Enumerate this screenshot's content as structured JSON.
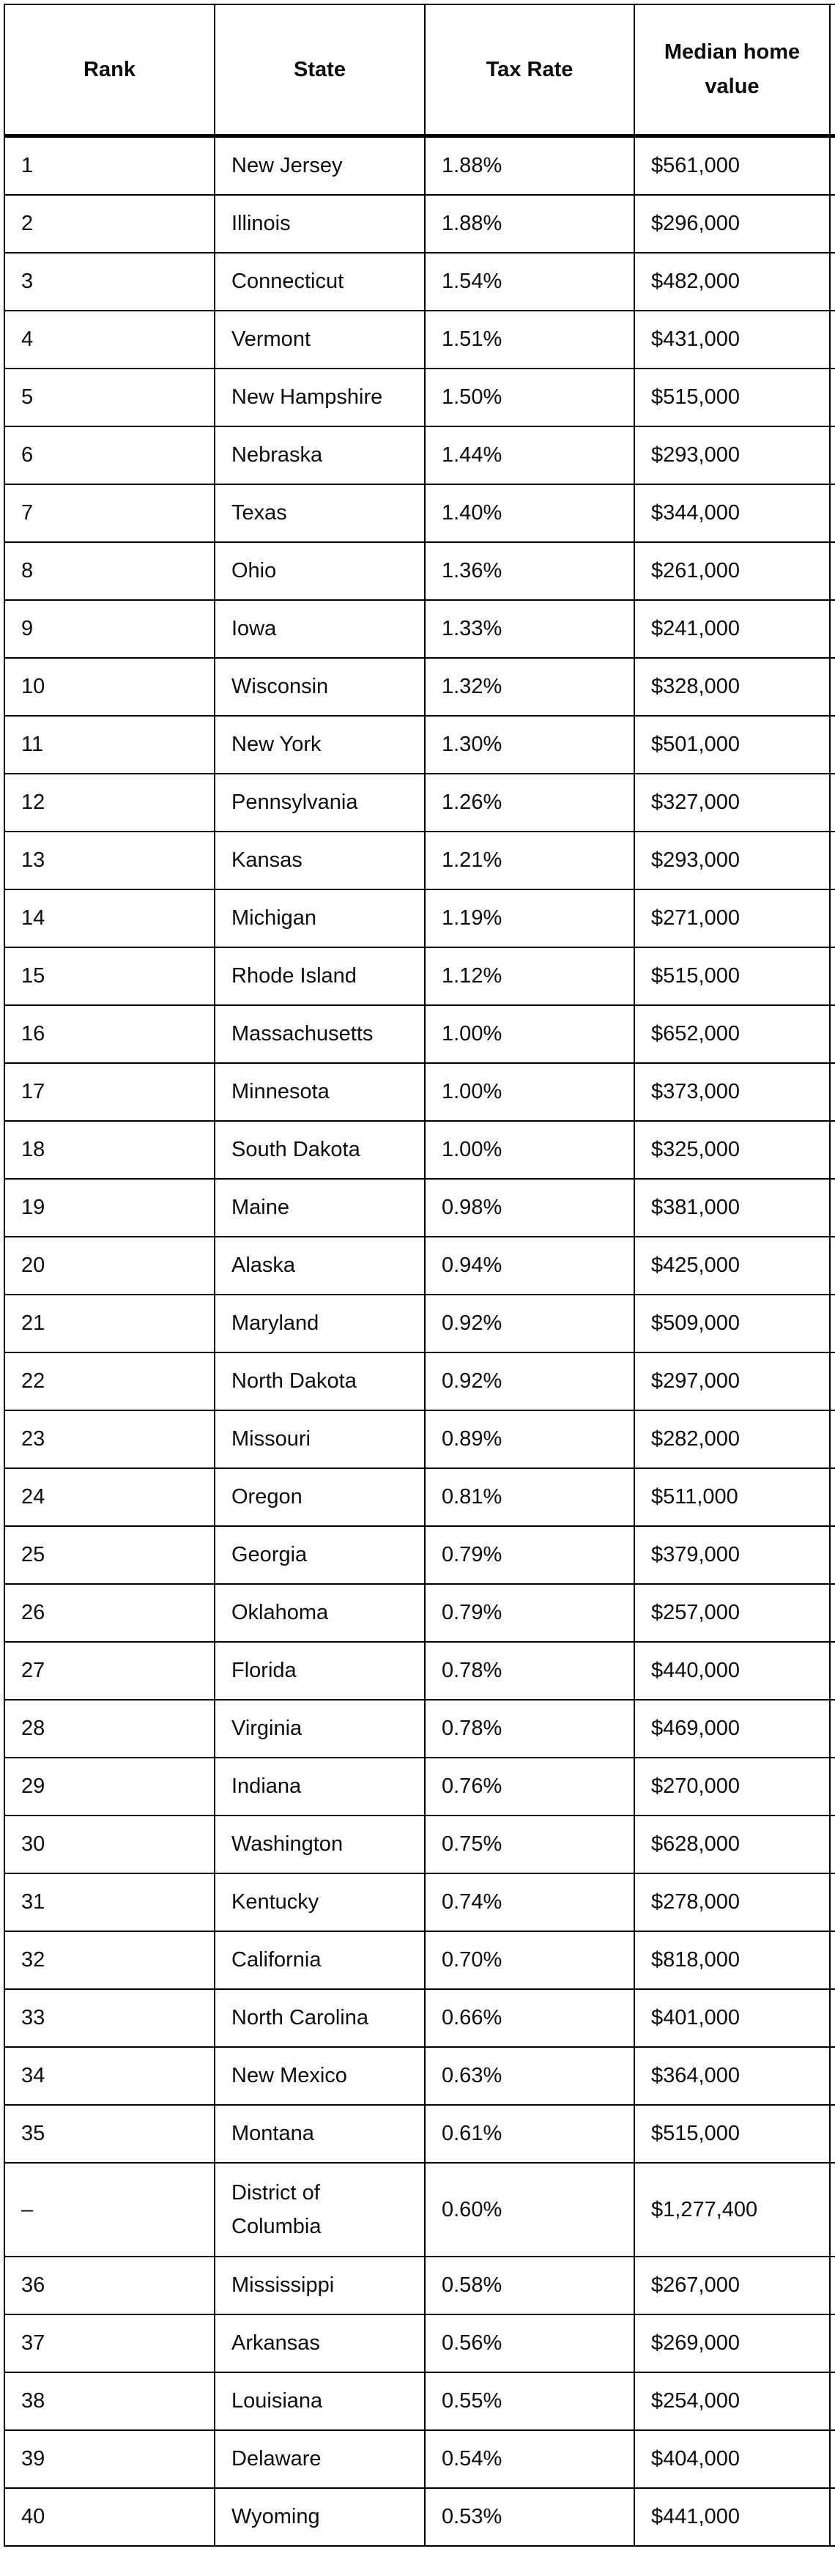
{
  "table": {
    "columns": [
      {
        "label": "Rank"
      },
      {
        "label": "State"
      },
      {
        "label": "Tax Rate"
      },
      {
        "label": "Median home value"
      }
    ],
    "rows": [
      {
        "rank": "1",
        "state": "New Jersey",
        "tax_rate": "1.88%",
        "median_home_value": "$561,000"
      },
      {
        "rank": "2",
        "state": "Illinois",
        "tax_rate": "1.88%",
        "median_home_value": "$296,000"
      },
      {
        "rank": "3",
        "state": "Connecticut",
        "tax_rate": "1.54%",
        "median_home_value": "$482,000"
      },
      {
        "rank": "4",
        "state": "Vermont",
        "tax_rate": "1.51%",
        "median_home_value": "$431,000"
      },
      {
        "rank": "5",
        "state": "New Hampshire",
        "tax_rate": "1.50%",
        "median_home_value": "$515,000"
      },
      {
        "rank": "6",
        "state": "Nebraska",
        "tax_rate": "1.44%",
        "median_home_value": "$293,000"
      },
      {
        "rank": "7",
        "state": "Texas",
        "tax_rate": "1.40%",
        "median_home_value": "$344,000"
      },
      {
        "rank": "8",
        "state": "Ohio",
        "tax_rate": "1.36%",
        "median_home_value": "$261,000"
      },
      {
        "rank": "9",
        "state": "Iowa",
        "tax_rate": "1.33%",
        "median_home_value": "$241,000"
      },
      {
        "rank": "10",
        "state": "Wisconsin",
        "tax_rate": "1.32%",
        "median_home_value": "$328,000"
      },
      {
        "rank": "11",
        "state": "New York",
        "tax_rate": "1.30%",
        "median_home_value": "$501,000"
      },
      {
        "rank": "12",
        "state": "Pennsylvania",
        "tax_rate": "1.26%",
        "median_home_value": "$327,000"
      },
      {
        "rank": "13",
        "state": "Kansas",
        "tax_rate": "1.21%",
        "median_home_value": "$293,000"
      },
      {
        "rank": "14",
        "state": "Michigan",
        "tax_rate": "1.19%",
        "median_home_value": "$271,000"
      },
      {
        "rank": "15",
        "state": "Rhode Island",
        "tax_rate": "1.12%",
        "median_home_value": "$515,000"
      },
      {
        "rank": "16",
        "state": "Massachusetts",
        "tax_rate": "1.00%",
        "median_home_value": "$652,000"
      },
      {
        "rank": "17",
        "state": "Minnesota",
        "tax_rate": "1.00%",
        "median_home_value": "$373,000"
      },
      {
        "rank": "18",
        "state": "South Dakota",
        "tax_rate": "1.00%",
        "median_home_value": "$325,000"
      },
      {
        "rank": "19",
        "state": "Maine",
        "tax_rate": "0.98%",
        "median_home_value": "$381,000"
      },
      {
        "rank": "20",
        "state": "Alaska",
        "tax_rate": "0.94%",
        "median_home_value": "$425,000"
      },
      {
        "rank": "21",
        "state": "Maryland",
        "tax_rate": "0.92%",
        "median_home_value": "$509,000"
      },
      {
        "rank": "22",
        "state": "North Dakota",
        "tax_rate": "0.92%",
        "median_home_value": "$297,000"
      },
      {
        "rank": "23",
        "state": "Missouri",
        "tax_rate": "0.89%",
        "median_home_value": "$282,000"
      },
      {
        "rank": "24",
        "state": "Oregon",
        "tax_rate": "0.81%",
        "median_home_value": "$511,000"
      },
      {
        "rank": "25",
        "state": "Georgia",
        "tax_rate": "0.79%",
        "median_home_value": "$379,000"
      },
      {
        "rank": "26",
        "state": "Oklahoma",
        "tax_rate": "0.79%",
        "median_home_value": "$257,000"
      },
      {
        "rank": "27",
        "state": "Florida",
        "tax_rate": "0.78%",
        "median_home_value": "$440,000"
      },
      {
        "rank": "28",
        "state": "Virginia",
        "tax_rate": "0.78%",
        "median_home_value": "$469,000"
      },
      {
        "rank": "29",
        "state": "Indiana",
        "tax_rate": "0.76%",
        "median_home_value": "$270,000"
      },
      {
        "rank": "30",
        "state": "Washington",
        "tax_rate": "0.75%",
        "median_home_value": "$628,000"
      },
      {
        "rank": "31",
        "state": "Kentucky",
        "tax_rate": "0.74%",
        "median_home_value": "$278,000"
      },
      {
        "rank": "32",
        "state": "California",
        "tax_rate": "0.70%",
        "median_home_value": "$818,000"
      },
      {
        "rank": "33",
        "state": "North Carolina",
        "tax_rate": "0.66%",
        "median_home_value": "$401,000"
      },
      {
        "rank": "34",
        "state": "New Mexico",
        "tax_rate": "0.63%",
        "median_home_value": "$364,000"
      },
      {
        "rank": "35",
        "state": "Montana",
        "tax_rate": "0.61%",
        "median_home_value": "$515,000"
      },
      {
        "rank": "–",
        "state": "District of Columbia",
        "tax_rate": "0.60%",
        "median_home_value": "$1,277,400"
      },
      {
        "rank": "36",
        "state": "Mississippi",
        "tax_rate": "0.58%",
        "median_home_value": "$267,000"
      },
      {
        "rank": "37",
        "state": "Arkansas",
        "tax_rate": "0.56%",
        "median_home_value": "$269,000"
      },
      {
        "rank": "38",
        "state": "Louisiana",
        "tax_rate": "0.55%",
        "median_home_value": "$254,000"
      },
      {
        "rank": "39",
        "state": "Delaware",
        "tax_rate": "0.54%",
        "median_home_value": "$404,000"
      },
      {
        "rank": "40",
        "state": "Wyoming",
        "tax_rate": "0.53%",
        "median_home_value": "$441,000"
      }
    ]
  }
}
